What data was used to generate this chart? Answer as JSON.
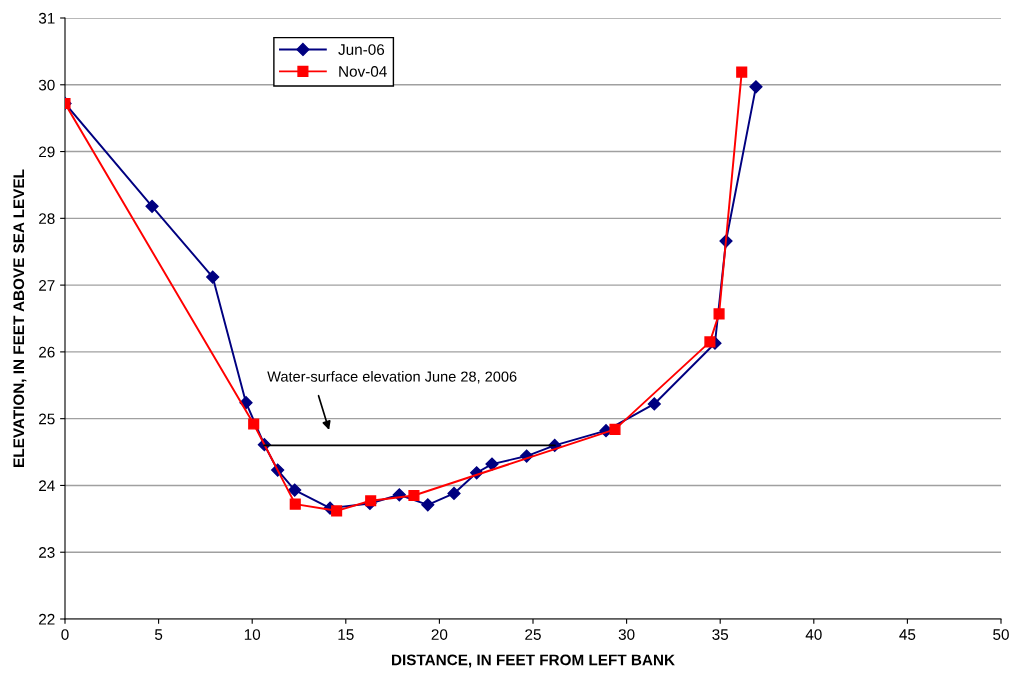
{
  "chart_data": {
    "type": "line",
    "xlabel": "DISTANCE, IN FEET FROM LEFT BANK",
    "ylabel": "ELEVATION, IN FEET ABOVE SEA LEVEL",
    "xlim": [
      0,
      50
    ],
    "xticks": [
      0,
      5,
      10,
      15,
      20,
      25,
      30,
      35,
      40,
      45,
      50
    ],
    "ylim": [
      22,
      31
    ],
    "yticks": [
      22,
      23,
      24,
      25,
      26,
      27,
      28,
      29,
      30,
      31
    ],
    "grid": "y",
    "legend": "top left",
    "line_style": "solid",
    "series": [
      {
        "name": "Jun-06",
        "color": "#000080",
        "marker": "diamond",
        "x": [
          0,
          4.65,
          7.89,
          9.67,
          10.65,
          11.36,
          12.27,
          14.16,
          16.29,
          17.86,
          19.38,
          20.78,
          21.99,
          22.81,
          24.66,
          26.16,
          28.9,
          31.48,
          34.72,
          35.31,
          36.91
        ],
        "values": [
          29.72,
          28.18,
          27.12,
          25.24,
          24.61,
          24.23,
          23.93,
          23.66,
          23.73,
          23.86,
          23.71,
          23.88,
          24.19,
          24.32,
          24.44,
          24.6,
          24.82,
          25.22,
          26.13,
          27.66,
          29.97
        ]
      },
      {
        "name": "Nov-04",
        "color": "#ff0000",
        "marker": "square",
        "x": [
          0,
          10.08,
          12.3,
          14.51,
          16.33,
          18.64,
          29.38,
          34.45,
          34.94,
          36.15
        ],
        "values": [
          29.72,
          24.92,
          23.72,
          23.62,
          23.77,
          23.85,
          24.84,
          26.15,
          26.57,
          30.19
        ]
      },
      {
        "color": "#000000",
        "marker": "none",
        "x": [
          10.65,
          26.16
        ],
        "values": [
          24.6,
          24.6
        ]
      }
    ],
    "annotations": [
      "Water-surface elevation June 28, 2006"
    ]
  }
}
